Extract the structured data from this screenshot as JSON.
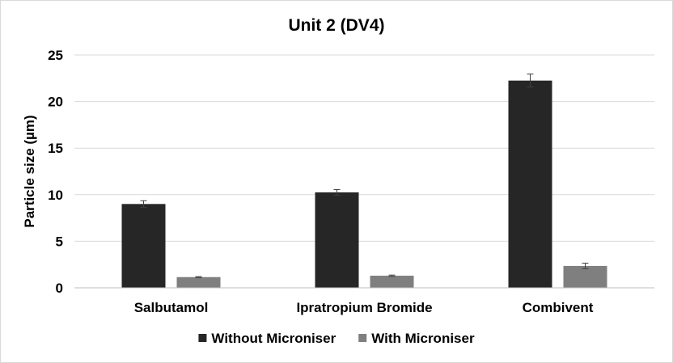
{
  "chart_data": {
    "type": "bar",
    "title": "Unit 2 (DV4)",
    "xlabel": "",
    "ylabel": "Particle size (µm)",
    "ylim": [
      0,
      25
    ],
    "yticks": [
      0,
      5,
      10,
      15,
      20,
      25
    ],
    "grid": true,
    "legend_position": "bottom",
    "categories": [
      "Salbutamol",
      "Ipratropium Bromide",
      "Combivent"
    ],
    "series": [
      {
        "name": "Without Microniser",
        "color": "#262626",
        "values": [
          9.0,
          10.25,
          22.25
        ],
        "errors": [
          0.35,
          0.3,
          0.7
        ]
      },
      {
        "name": "With Microniser",
        "color": "#7f7f7f",
        "values": [
          1.15,
          1.3,
          2.35
        ],
        "errors": [
          0.05,
          0.07,
          0.3
        ]
      }
    ]
  }
}
